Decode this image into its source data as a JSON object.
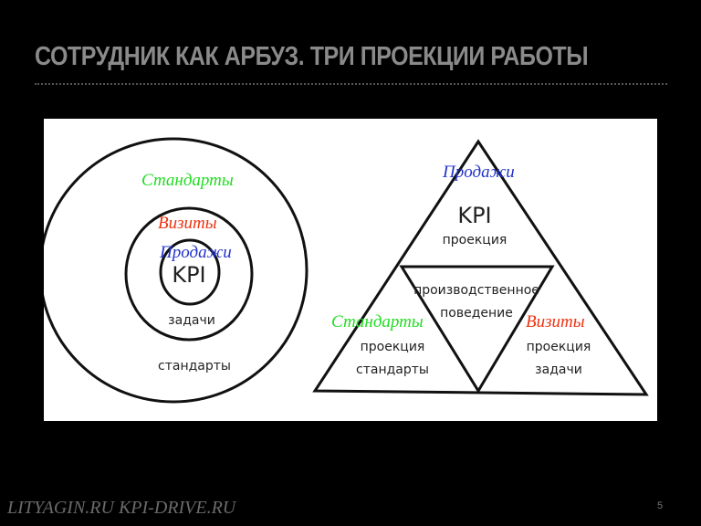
{
  "slide": {
    "title": "СОТРУДНИК КАК АРБУЗ. ТРИ ПРОЕКЦИИ РАБОТЫ",
    "footer": "LITYAGIN.RU  KPI-DRIVE.RU",
    "page_number": "5"
  },
  "colors": {
    "standards": "#22dd22",
    "visits": "#ee3311",
    "sales": "#2233cc"
  },
  "circles": {
    "standards_label": "Стандарты",
    "visits_label": "Визиты",
    "sales_label": "Продажи",
    "kpi": "KPI",
    "tasks": "задачи",
    "standards": "стандарты"
  },
  "pyramid": {
    "sales_label": "Продажи",
    "kpi": "KPI",
    "kpi_sub": "проекция",
    "center_line1": "производственное",
    "center_line2": "поведение",
    "standards_label": "Стандарты",
    "left_line1": "проекция",
    "left_line2": "стандарты",
    "visits_label": "Визиты",
    "right_line1": "проекция",
    "right_line2": "задачи"
  }
}
